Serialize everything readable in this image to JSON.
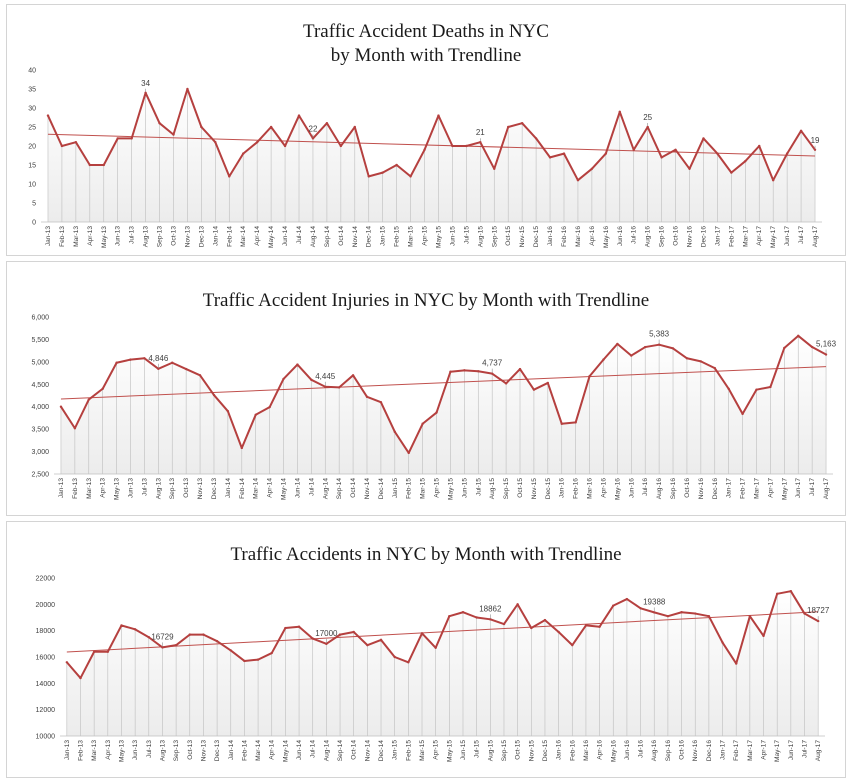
{
  "chart_data": [
    {
      "type": "line",
      "title": "Traffic Accident Deaths in NYC\nby Month with  Trendline",
      "xlabel": "",
      "ylabel": "",
      "ylim": [
        0,
        40
      ],
      "yticks": [
        "0",
        "5",
        "10",
        "15",
        "20",
        "25",
        "30",
        "35",
        "40"
      ],
      "grid": false,
      "legend": "none",
      "trendline": true,
      "colors": {
        "line": "#b5403f",
        "trend": "#c0504d",
        "drop": "#bdbdbd",
        "fill": "#ececec"
      },
      "categories": [
        "Jan-13",
        "Feb-13",
        "Mar-13",
        "Apr-13",
        "May-13",
        "Jun-13",
        "Jul-13",
        "Aug-13",
        "Sep-13",
        "Oct-13",
        "Nov-13",
        "Dec-13",
        "Jan-14",
        "Feb-14",
        "Mar-14",
        "Apr-14",
        "May-14",
        "Jun-14",
        "Jul-14",
        "Aug-14",
        "Sep-14",
        "Oct-14",
        "Nov-14",
        "Dec-14",
        "Jan-15",
        "Feb-15",
        "Mar-15",
        "Apr-15",
        "May-15",
        "Jun-15",
        "Jul-15",
        "Aug-15",
        "Sep-15",
        "Oct-15",
        "Nov-15",
        "Dec-15",
        "Jan-16",
        "Feb-16",
        "Mar-16",
        "Apr-16",
        "May-16",
        "Jun-16",
        "Jul-16",
        "Aug-16",
        "Sep-16",
        "Oct-16",
        "Nov-16",
        "Dec-16",
        "Jan-17",
        "Feb-17",
        "Mar-17",
        "Apr-17",
        "May-17",
        "Jun-17",
        "Jul-17",
        "Aug-17"
      ],
      "series": [
        {
          "values": [
            28,
            20,
            21,
            15,
            15,
            22,
            22,
            34,
            26,
            23,
            35,
            25,
            21,
            12,
            18,
            21,
            25,
            20,
            28,
            22,
            26,
            20,
            25,
            12,
            13,
            15,
            12,
            19,
            28,
            20,
            20,
            21,
            14,
            25,
            26,
            22,
            17,
            18,
            11,
            14,
            18,
            29,
            19,
            25,
            17,
            19,
            14,
            22,
            18,
            13,
            16,
            20,
            11,
            18,
            24,
            19
          ]
        }
      ],
      "data_labels": [
        {
          "index": 7,
          "text": "34"
        },
        {
          "index": 19,
          "text": "22"
        },
        {
          "index": 31,
          "text": "21"
        },
        {
          "index": 43,
          "text": "25"
        },
        {
          "index": 55,
          "text": "19"
        }
      ]
    },
    {
      "type": "line",
      "title": "Traffic Accident Injuries in NYC  by Month with  Trendline",
      "xlabel": "",
      "ylabel": "",
      "ylim": [
        2500,
        6000
      ],
      "yticks": [
        "2,500",
        "3,000",
        "3,500",
        "4,000",
        "4,500",
        "5,000",
        "5,500",
        "6,000"
      ],
      "grid": false,
      "legend": "none",
      "trendline": true,
      "colors": {
        "line": "#b5403f",
        "trend": "#c0504d",
        "drop": "#bdbdbd",
        "fill": "#ececec"
      },
      "categories": [
        "Jan-13",
        "Feb-13",
        "Mar-13",
        "Apr-13",
        "May-13",
        "Jun-13",
        "Jul-13",
        "Aug-13",
        "Sep-13",
        "Oct-13",
        "Nov-13",
        "Dec-13",
        "Jan-14",
        "Feb-14",
        "Mar-14",
        "Apr-14",
        "May-14",
        "Jun-14",
        "Jul-14",
        "Aug-14",
        "Sep-14",
        "Oct-14",
        "Nov-14",
        "Dec-14",
        "Jan-15",
        "Feb-15",
        "Mar-15",
        "Apr-15",
        "May-15",
        "Jun-15",
        "Jul-15",
        "Aug-15",
        "Sep-15",
        "Oct-15",
        "Nov-15",
        "Dec-15",
        "Jan-16",
        "Feb-16",
        "Mar-16",
        "Apr-16",
        "May-16",
        "Jun-16",
        "Jul-16",
        "Aug-16",
        "Sep-16",
        "Oct-16",
        "Nov-16",
        "Dec-16",
        "Jan-17",
        "Feb-17",
        "Mar-17",
        "Apr-17",
        "May-17",
        "Jun-17",
        "Jul-17",
        "Aug-17"
      ],
      "series": [
        {
          "values": [
            4000,
            3520,
            4160,
            4400,
            4980,
            5050,
            5080,
            4846,
            4980,
            4840,
            4700,
            4260,
            3900,
            3080,
            3820,
            3990,
            4620,
            4940,
            4600,
            4445,
            4430,
            4700,
            4220,
            4100,
            3440,
            2970,
            3620,
            3870,
            4780,
            4810,
            4790,
            4737,
            4520,
            4840,
            4380,
            4530,
            3620,
            3650,
            4680,
            5050,
            5400,
            5140,
            5330,
            5383,
            5300,
            5080,
            5010,
            4860,
            4400,
            3840,
            4380,
            4440,
            5310,
            5580,
            5330,
            5163
          ]
        }
      ],
      "data_labels": [
        {
          "index": 7,
          "text": "4,846"
        },
        {
          "index": 19,
          "text": "4,445"
        },
        {
          "index": 31,
          "text": "4,737"
        },
        {
          "index": 43,
          "text": "5,383"
        },
        {
          "index": 55,
          "text": "5,163"
        }
      ]
    },
    {
      "type": "line",
      "title": "Traffic Accidents in NYC  by Month with  Trendline",
      "xlabel": "",
      "ylabel": "",
      "ylim": [
        10000,
        22000
      ],
      "yticks": [
        "10000",
        "12000",
        "14000",
        "16000",
        "18000",
        "20000",
        "22000"
      ],
      "grid": false,
      "legend": "none",
      "trendline": true,
      "colors": {
        "line": "#b5403f",
        "trend": "#c0504d",
        "drop": "#bdbdbd",
        "fill": "#ececec"
      },
      "categories": [
        "Jan-13",
        "Feb-13",
        "Mar-13",
        "Apr-13",
        "May-13",
        "Jun-13",
        "Jul-13",
        "Aug-13",
        "Sep-13",
        "Oct-13",
        "Nov-13",
        "Dec-13",
        "Jan-14",
        "Feb-14",
        "Mar-14",
        "Apr-14",
        "May-14",
        "Jun-14",
        "Jul-14",
        "Aug-14",
        "Sep-14",
        "Oct-14",
        "Nov-14",
        "Dec-14",
        "Jan-15",
        "Feb-15",
        "Mar-15",
        "Apr-15",
        "May-15",
        "Jun-15",
        "Jul-15",
        "Aug-15",
        "Sep-15",
        "Oct-15",
        "Nov-15",
        "Dec-15",
        "Jan-16",
        "Feb-16",
        "Mar-16",
        "Apr-16",
        "May-16",
        "Jun-16",
        "Jul-16",
        "Aug-16",
        "Sep-16",
        "Oct-16",
        "Nov-16",
        "Dec-16",
        "Jan-17",
        "Feb-17",
        "Mar-17",
        "Apr-17",
        "May-17",
        "Jun-17",
        "Jul-17",
        "Aug-17"
      ],
      "series": [
        {
          "values": [
            15600,
            14400,
            16400,
            16400,
            18400,
            18100,
            17500,
            16729,
            16900,
            17700,
            17700,
            17200,
            16500,
            15700,
            15800,
            16300,
            18200,
            18300,
            17400,
            17000,
            17700,
            17900,
            16900,
            17300,
            16000,
            15600,
            17800,
            16700,
            19100,
            19400,
            19000,
            18862,
            18500,
            20000,
            18200,
            18800,
            17900,
            16900,
            18400,
            18300,
            19900,
            20400,
            19700,
            19388,
            19100,
            19400,
            19300,
            19100,
            17100,
            15500,
            19100,
            17600,
            20800,
            21000,
            19300,
            18727
          ]
        }
      ],
      "data_labels": [
        {
          "index": 7,
          "text": "16729"
        },
        {
          "index": 19,
          "text": "17000"
        },
        {
          "index": 31,
          "text": "18862"
        },
        {
          "index": 43,
          "text": "19388"
        },
        {
          "index": 55,
          "text": "18727"
        }
      ]
    }
  ]
}
